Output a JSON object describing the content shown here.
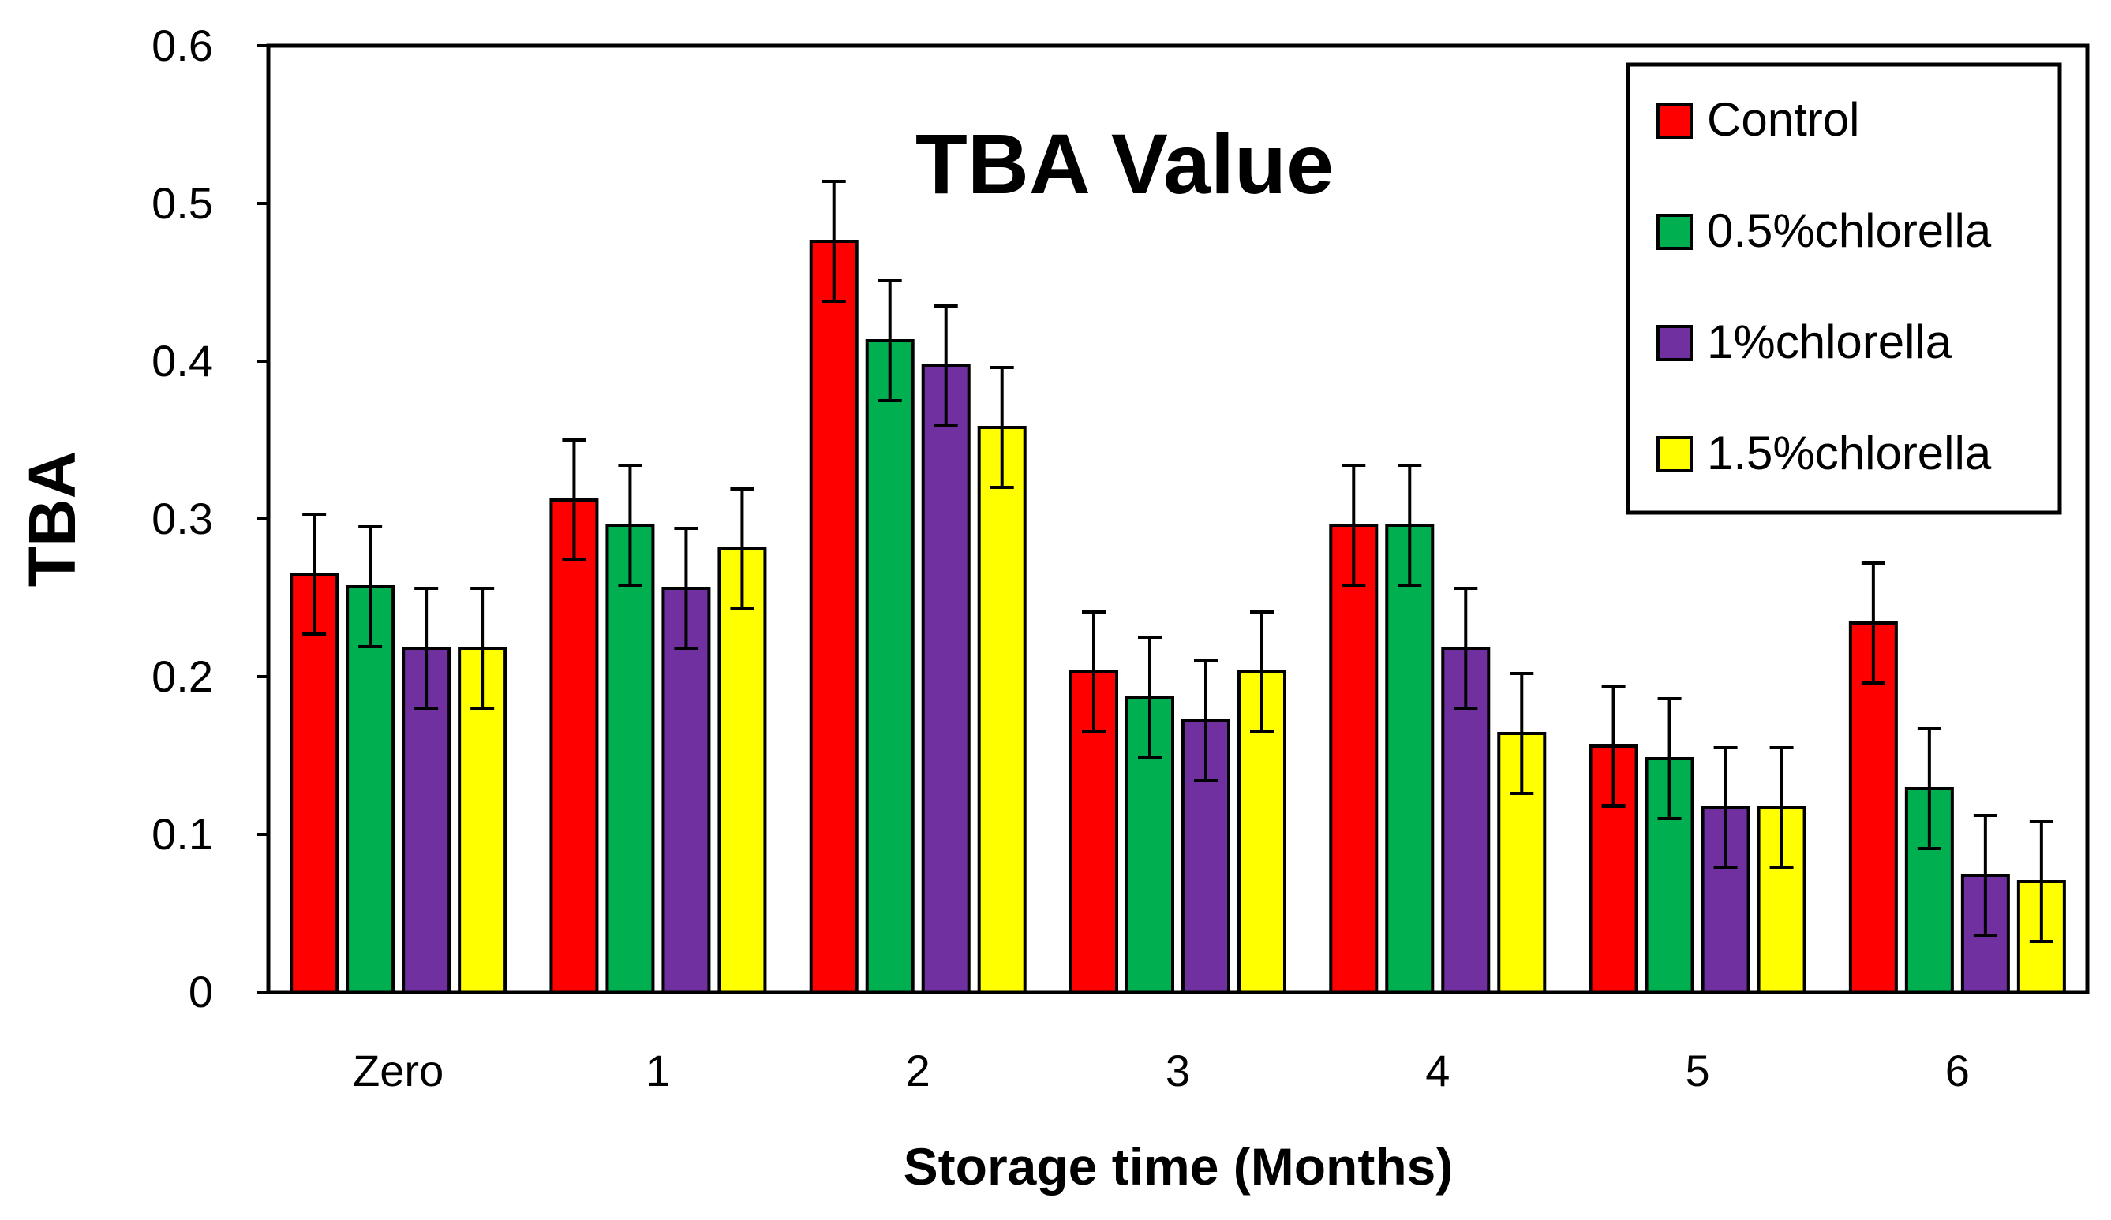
{
  "chart_data": {
    "type": "bar",
    "title": "TBA Value",
    "xlabel": "Storage time (Months)",
    "ylabel": "TBA",
    "ylim": [
      0,
      0.6
    ],
    "yticks": [
      0,
      0.1,
      0.2,
      0.3,
      0.4,
      0.5,
      0.6
    ],
    "ytick_labels": [
      "0",
      "0.1",
      "0.2",
      "0.3",
      "0.4",
      "0.5",
      "0.6"
    ],
    "categories": [
      "Zero",
      "1",
      "2",
      "3",
      "4",
      "5",
      "6"
    ],
    "legend_position": "top-right",
    "grid": false,
    "error_bar": 0.038,
    "series": [
      {
        "name": "Control",
        "color": "#FF0000",
        "values": [
          0.265,
          0.312,
          0.476,
          0.203,
          0.296,
          0.156,
          0.234
        ]
      },
      {
        "name": "0.5%chlorella",
        "color": "#00B050",
        "values": [
          0.257,
          0.296,
          0.413,
          0.187,
          0.296,
          0.148,
          0.129
        ]
      },
      {
        "name": "1%chlorella",
        "color": "#7030A0",
        "values": [
          0.218,
          0.256,
          0.397,
          0.172,
          0.218,
          0.117,
          0.074
        ]
      },
      {
        "name": "1.5%chlorella",
        "color": "#FFFF00",
        "values": [
          0.218,
          0.281,
          0.358,
          0.203,
          0.164,
          0.117,
          0.07
        ]
      }
    ]
  }
}
